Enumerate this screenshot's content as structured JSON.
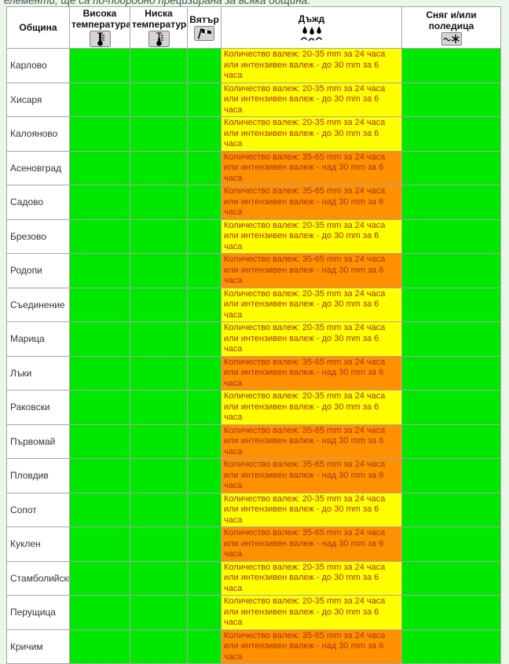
{
  "page": {
    "top_note": "елементи, ще са по-подробно прецизирана за всяка община."
  },
  "table": {
    "header": [
      {
        "label": "Община",
        "icon": ""
      },
      {
        "label": "Висока температура",
        "icon": "thermometer-high-icon"
      },
      {
        "label": "Ниска температура",
        "icon": "thermometer-low-icon"
      },
      {
        "label": "Вятър",
        "icon": "windsock-icon"
      },
      {
        "label": "Дъжд",
        "icon": "rain-icon"
      },
      {
        "label": "Сняг и/или поледица",
        "icon": "snowflake-icon"
      }
    ],
    "colors": {
      "green": "#00e800",
      "yellow": "#ffff00",
      "orange": "#ff9100",
      "warning_text": "#aa3300"
    },
    "warning_levels": {
      "green": {
        "text": ""
      },
      "yellow": {
        "text": "Количество валеж: 20-35 mm за 24 часа или интензивен валеж - до 30 mm за 6 часа"
      },
      "orange": {
        "text": "Количество валеж: 35-65 mm за 24 часа или интензивен валеж - над 30 mm за 6 часа"
      }
    },
    "rows": [
      {
        "municipality": "Карлово",
        "high_temp": "green",
        "low_temp": "green",
        "wind": "green",
        "rain": "yellow",
        "snow": "green"
      },
      {
        "municipality": "Хисаря",
        "high_temp": "green",
        "low_temp": "green",
        "wind": "green",
        "rain": "yellow",
        "snow": "green"
      },
      {
        "municipality": "Калояново",
        "high_temp": "green",
        "low_temp": "green",
        "wind": "green",
        "rain": "yellow",
        "snow": "green"
      },
      {
        "municipality": "Асеновград",
        "high_temp": "green",
        "low_temp": "green",
        "wind": "green",
        "rain": "orange",
        "snow": "green"
      },
      {
        "municipality": "Садово",
        "high_temp": "green",
        "low_temp": "green",
        "wind": "green",
        "rain": "orange",
        "snow": "green"
      },
      {
        "municipality": "Брезово",
        "high_temp": "green",
        "low_temp": "green",
        "wind": "green",
        "rain": "yellow",
        "snow": "green"
      },
      {
        "municipality": "Родопи",
        "high_temp": "green",
        "low_temp": "green",
        "wind": "green",
        "rain": "orange",
        "snow": "green"
      },
      {
        "municipality": "Съединение",
        "high_temp": "green",
        "low_temp": "green",
        "wind": "green",
        "rain": "yellow",
        "snow": "green"
      },
      {
        "municipality": "Марица",
        "high_temp": "green",
        "low_temp": "green",
        "wind": "green",
        "rain": "yellow",
        "snow": "green"
      },
      {
        "municipality": "Лъки",
        "high_temp": "green",
        "low_temp": "green",
        "wind": "green",
        "rain": "orange",
        "snow": "green"
      },
      {
        "municipality": "Раковски",
        "high_temp": "green",
        "low_temp": "green",
        "wind": "green",
        "rain": "yellow",
        "snow": "green"
      },
      {
        "municipality": "Първомай",
        "high_temp": "green",
        "low_temp": "green",
        "wind": "green",
        "rain": "orange",
        "snow": "green"
      },
      {
        "municipality": "Пловдив",
        "high_temp": "green",
        "low_temp": "green",
        "wind": "green",
        "rain": "orange",
        "snow": "green"
      },
      {
        "municipality": "Сопот",
        "high_temp": "green",
        "low_temp": "green",
        "wind": "green",
        "rain": "yellow",
        "snow": "green"
      },
      {
        "municipality": "Куклен",
        "high_temp": "green",
        "low_temp": "green",
        "wind": "green",
        "rain": "orange",
        "snow": "green"
      },
      {
        "municipality": "Стамболийски",
        "high_temp": "green",
        "low_temp": "green",
        "wind": "green",
        "rain": "yellow",
        "snow": "green"
      },
      {
        "municipality": "Перущица",
        "high_temp": "green",
        "low_temp": "green",
        "wind": "green",
        "rain": "yellow",
        "snow": "green"
      },
      {
        "municipality": "Кричим",
        "high_temp": "green",
        "low_temp": "green",
        "wind": "green",
        "rain": "orange",
        "snow": "green"
      }
    ]
  }
}
